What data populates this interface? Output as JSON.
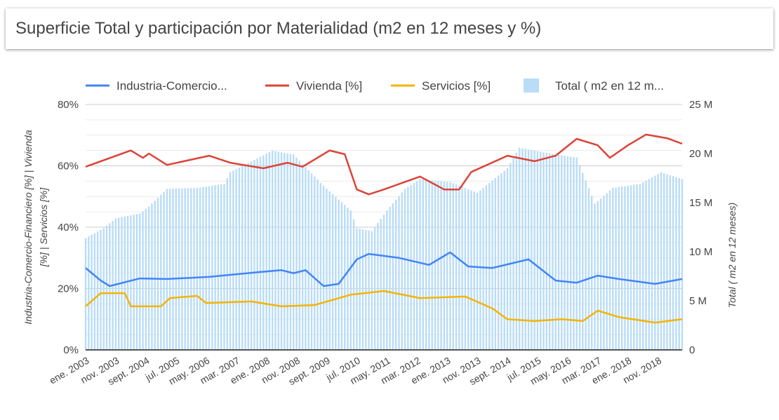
{
  "title": "Superficie Total y participación por Materialidad (m2 en 12 meses y %)",
  "chart_data": {
    "type": "bar+line",
    "legend_position": "top",
    "legend": [
      "Industria-Comercio...",
      "Vivienda [%]",
      "Servicios [%]",
      "Total ( m2 en 12 m..."
    ],
    "y_left_label": "Industria-Comercio-Financiero [%] | Vivienda [%] | Servicios [%]",
    "y_right_label": "Total ( m2 en 12 meses)",
    "y_left_ticks": [
      "0%",
      "20%",
      "40%",
      "60%",
      "80%"
    ],
    "y_left_range": [
      0,
      80
    ],
    "y_right_ticks": [
      "0",
      "5 M",
      "10 M",
      "15 M",
      "20 M",
      "25 M"
    ],
    "y_right_range": [
      0,
      25
    ],
    "x_range": [
      "2003-01",
      "2019-07"
    ],
    "x_ticks": [
      "ene. 2003",
      "nov. 2003",
      "sept. 2004",
      "jul. 2005",
      "may. 2006",
      "mar. 2007",
      "ene. 2008",
      "nov. 2008",
      "sept. 2009",
      "jul. 2010",
      "may. 2011",
      "mar. 2012",
      "ene. 2013",
      "nov. 2013",
      "sept. 2014",
      "jul. 2015",
      "may. 2016",
      "mar. 2017",
      "ene. 2018",
      "nov. 2018"
    ],
    "grid": true,
    "colors": {
      "industria": "#4285f4",
      "vivienda": "#db4437",
      "servicios": "#f4b400",
      "total": "#b9dcf7"
    },
    "series": [
      {
        "name": "Industria-Comercio...",
        "axis": "left",
        "points": [
          [
            "2003-01",
            26.7
          ],
          [
            "2003-06",
            22.6
          ],
          [
            "2003-09",
            20.8
          ],
          [
            "2004-07",
            23.3
          ],
          [
            "2005-04",
            23.1
          ],
          [
            "2006-06",
            23.8
          ],
          [
            "2007-11",
            25.4
          ],
          [
            "2008-06",
            26
          ],
          [
            "2008-10",
            25
          ],
          [
            "2009-02",
            26
          ],
          [
            "2009-08",
            20.8
          ],
          [
            "2010-01",
            21.5
          ],
          [
            "2010-07",
            29.5
          ],
          [
            "2010-11",
            31.3
          ],
          [
            "2011-09",
            30
          ],
          [
            "2012-07",
            27.7
          ],
          [
            "2013-02",
            31.8
          ],
          [
            "2013-08",
            27.2
          ],
          [
            "2014-04",
            26.7
          ],
          [
            "2015-04",
            29.5
          ],
          [
            "2016-01",
            22.6
          ],
          [
            "2016-08",
            21.9
          ],
          [
            "2017-03",
            24.2
          ],
          [
            "2017-10",
            23.1
          ],
          [
            "2018-10",
            21.5
          ],
          [
            "2019-07",
            23.1
          ]
        ]
      },
      {
        "name": "Vivienda [%]",
        "axis": "left",
        "points": [
          [
            "2003-01",
            59.7
          ],
          [
            "2004-04",
            65
          ],
          [
            "2004-08",
            62.6
          ],
          [
            "2004-10",
            64
          ],
          [
            "2005-04",
            60.3
          ],
          [
            "2006-06",
            63.3
          ],
          [
            "2007-01",
            61
          ],
          [
            "2007-12",
            59.2
          ],
          [
            "2008-08",
            61
          ],
          [
            "2009-01",
            59.7
          ],
          [
            "2009-10",
            65
          ],
          [
            "2010-03",
            63.8
          ],
          [
            "2010-07",
            52.3
          ],
          [
            "2010-11",
            50.7
          ],
          [
            "2011-04",
            52.3
          ],
          [
            "2012-04",
            56.5
          ],
          [
            "2012-12",
            52.3
          ],
          [
            "2013-05",
            52.3
          ],
          [
            "2013-09",
            58
          ],
          [
            "2014-09",
            63.3
          ],
          [
            "2015-06",
            61.5
          ],
          [
            "2016-01",
            63.3
          ],
          [
            "2016-08",
            68.8
          ],
          [
            "2017-03",
            66.7
          ],
          [
            "2017-07",
            62.6
          ],
          [
            "2018-01",
            66.7
          ],
          [
            "2018-07",
            70.2
          ],
          [
            "2019-02",
            69
          ],
          [
            "2019-07",
            67.2
          ]
        ]
      },
      {
        "name": "Servicios [%]",
        "axis": "left",
        "points": [
          [
            "2003-01",
            14.2
          ],
          [
            "2003-06",
            18.5
          ],
          [
            "2004-02",
            18.5
          ],
          [
            "2004-04",
            14.2
          ],
          [
            "2005-02",
            14.2
          ],
          [
            "2005-05",
            16.9
          ],
          [
            "2006-02",
            17.6
          ],
          [
            "2006-05",
            15.3
          ],
          [
            "2007-08",
            15.8
          ],
          [
            "2008-06",
            14.2
          ],
          [
            "2009-05",
            14.6
          ],
          [
            "2010-05",
            18
          ],
          [
            "2011-04",
            19.2
          ],
          [
            "2012-04",
            16.9
          ],
          [
            "2013-07",
            17.4
          ],
          [
            "2014-04",
            13.5
          ],
          [
            "2014-09",
            10
          ],
          [
            "2015-06",
            9.4
          ],
          [
            "2016-03",
            10
          ],
          [
            "2016-10",
            9.4
          ],
          [
            "2017-03",
            12.8
          ],
          [
            "2017-10",
            10.7
          ],
          [
            "2018-10",
            8.9
          ],
          [
            "2019-07",
            10
          ]
        ]
      },
      {
        "name": "Total ( m2 en 12 m...",
        "axis": "right",
        "type": "bar",
        "points": [
          [
            "2003-01",
            11.4
          ],
          [
            "2003-07",
            12.4
          ],
          [
            "2003-11",
            13.4
          ],
          [
            "2004-07",
            13.9
          ],
          [
            "2004-10",
            14.6
          ],
          [
            "2005-04",
            16.4
          ],
          [
            "2006-02",
            16.5
          ],
          [
            "2006-11",
            16.9
          ],
          [
            "2007-01",
            18.1
          ],
          [
            "2008-03",
            20.3
          ],
          [
            "2008-10",
            19.9
          ],
          [
            "2009-08",
            16.7
          ],
          [
            "2010-05",
            14.2
          ],
          [
            "2010-07",
            12.4
          ],
          [
            "2010-12",
            12.1
          ],
          [
            "2011-05",
            14.2
          ],
          [
            "2011-11",
            16.4
          ],
          [
            "2012-04",
            17.4
          ],
          [
            "2013-02",
            17.1
          ],
          [
            "2013-11",
            16
          ],
          [
            "2014-09",
            18.5
          ],
          [
            "2015-01",
            20.6
          ],
          [
            "2016-01",
            19.9
          ],
          [
            "2016-08",
            19.6
          ],
          [
            "2017-02",
            14.9
          ],
          [
            "2017-08",
            16.5
          ],
          [
            "2018-05",
            16.9
          ],
          [
            "2018-12",
            18.1
          ],
          [
            "2019-07",
            17.4
          ]
        ]
      }
    ]
  }
}
